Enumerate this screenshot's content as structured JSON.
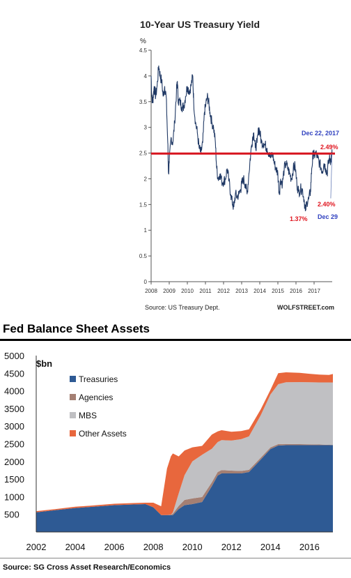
{
  "chart_data": [
    {
      "type": "line",
      "title": "10-Year US Treasury Yield",
      "ylabel": "%",
      "xlabel": "",
      "ylim": [
        0,
        4.5
      ],
      "yticks": [
        "0",
        "0.5",
        "1",
        "1.5",
        "2",
        "2.5",
        "3",
        "3.5",
        "4",
        "4.5"
      ],
      "xticks": [
        "2008",
        "2009",
        "2010",
        "2011",
        "2012",
        "2013",
        "2014",
        "2015",
        "2016",
        "2017"
      ],
      "xlim": [
        2008,
        2018.0
      ],
      "grid": false,
      "series": [
        {
          "values": [
            [
              2008.0,
              4.0
            ],
            [
              2008.04,
              3.6
            ],
            [
              2008.08,
              3.5
            ],
            [
              2008.12,
              3.6
            ],
            [
              2008.17,
              3.8
            ],
            [
              2008.25,
              3.6
            ],
            [
              2008.33,
              3.8
            ],
            [
              2008.42,
              4.2
            ],
            [
              2008.5,
              4.0
            ],
            [
              2008.58,
              3.9
            ],
            [
              2008.67,
              3.6
            ],
            [
              2008.75,
              3.8
            ],
            [
              2008.83,
              3.6
            ],
            [
              2008.92,
              2.7
            ],
            [
              2008.96,
              2.1
            ],
            [
              2009.0,
              2.3
            ],
            [
              2009.1,
              2.8
            ],
            [
              2009.2,
              2.7
            ],
            [
              2009.3,
              3.1
            ],
            [
              2009.4,
              3.7
            ],
            [
              2009.45,
              3.9
            ],
            [
              2009.5,
              3.5
            ],
            [
              2009.6,
              3.5
            ],
            [
              2009.7,
              3.4
            ],
            [
              2009.8,
              3.4
            ],
            [
              2009.9,
              3.6
            ],
            [
              2010.0,
              3.8
            ],
            [
              2010.1,
              3.7
            ],
            [
              2010.2,
              3.8
            ],
            [
              2010.3,
              4.0
            ],
            [
              2010.35,
              3.5
            ],
            [
              2010.45,
              3.1
            ],
            [
              2010.55,
              2.9
            ],
            [
              2010.65,
              2.6
            ],
            [
              2010.75,
              2.5
            ],
            [
              2010.85,
              2.7
            ],
            [
              2010.95,
              3.3
            ],
            [
              2011.0,
              3.4
            ],
            [
              2011.1,
              3.6
            ],
            [
              2011.17,
              3.5
            ],
            [
              2011.25,
              3.3
            ],
            [
              2011.35,
              3.1
            ],
            [
              2011.45,
              3.0
            ],
            [
              2011.55,
              2.7
            ],
            [
              2011.62,
              2.2
            ],
            [
              2011.7,
              2.0
            ],
            [
              2011.8,
              2.1
            ],
            [
              2011.9,
              1.95
            ],
            [
              2012.0,
              1.95
            ],
            [
              2012.1,
              2.0
            ],
            [
              2012.2,
              2.2
            ],
            [
              2012.3,
              1.95
            ],
            [
              2012.4,
              1.7
            ],
            [
              2012.5,
              1.5
            ],
            [
              2012.57,
              1.45
            ],
            [
              2012.65,
              1.7
            ],
            [
              2012.75,
              1.65
            ],
            [
              2012.85,
              1.7
            ],
            [
              2012.95,
              1.8
            ],
            [
              2013.0,
              1.9
            ],
            [
              2013.1,
              2.0
            ],
            [
              2013.2,
              1.9
            ],
            [
              2013.3,
              1.7
            ],
            [
              2013.4,
              2.1
            ],
            [
              2013.5,
              2.5
            ],
            [
              2013.6,
              2.8
            ],
            [
              2013.67,
              2.9
            ],
            [
              2013.75,
              2.6
            ],
            [
              2013.85,
              2.7
            ],
            [
              2013.95,
              3.0
            ],
            [
              2014.0,
              2.9
            ],
            [
              2014.1,
              2.7
            ],
            [
              2014.2,
              2.7
            ],
            [
              2014.3,
              2.65
            ],
            [
              2014.4,
              2.6
            ],
            [
              2014.5,
              2.5
            ],
            [
              2014.6,
              2.4
            ],
            [
              2014.7,
              2.5
            ],
            [
              2014.8,
              2.3
            ],
            [
              2014.9,
              2.2
            ],
            [
              2015.0,
              2.1
            ],
            [
              2015.08,
              1.7
            ],
            [
              2015.15,
              2.0
            ],
            [
              2015.25,
              1.9
            ],
            [
              2015.35,
              2.2
            ],
            [
              2015.45,
              2.3
            ],
            [
              2015.55,
              2.2
            ],
            [
              2015.65,
              2.1
            ],
            [
              2015.75,
              2.0
            ],
            [
              2015.85,
              2.2
            ],
            [
              2015.95,
              2.25
            ],
            [
              2016.05,
              1.9
            ],
            [
              2016.15,
              1.75
            ],
            [
              2016.25,
              1.8
            ],
            [
              2016.35,
              1.8
            ],
            [
              2016.45,
              1.6
            ],
            [
              2016.52,
              1.37
            ],
            [
              2016.6,
              1.55
            ],
            [
              2016.7,
              1.6
            ],
            [
              2016.8,
              1.75
            ],
            [
              2016.87,
              2.2
            ],
            [
              2016.95,
              2.5
            ],
            [
              2017.0,
              2.45
            ],
            [
              2017.1,
              2.5
            ],
            [
              2017.2,
              2.4
            ],
            [
              2017.3,
              2.3
            ],
            [
              2017.4,
              2.2
            ],
            [
              2017.45,
              2.15
            ],
            [
              2017.55,
              2.3
            ],
            [
              2017.65,
              2.2
            ],
            [
              2017.72,
              2.1
            ],
            [
              2017.8,
              2.35
            ],
            [
              2017.88,
              2.4
            ],
            [
              2017.93,
              2.35
            ],
            [
              2017.97,
              2.45
            ],
            [
              2017.99,
              2.49
            ]
          ]
        }
      ],
      "reference_line": 2.49,
      "reference_color": "#d7141e",
      "line_color": "#1f3864",
      "annotations": [
        {
          "text": "Dec 22, 2017",
          "color": "#2e3fbf"
        },
        {
          "text": "2.49%",
          "color": "#e0141e"
        },
        {
          "text": "2.40%",
          "color": "#e0141e"
        },
        {
          "text": "Dec 29",
          "color": "#2e3fbf"
        },
        {
          "text": "1.37%",
          "color": "#e0141e"
        }
      ],
      "source": "Source: US Treasury Dept.",
      "credit": "WOLFSTREET.com"
    },
    {
      "type": "area",
      "title": "Fed Balance Sheet Assets",
      "ylabel": "$bn",
      "xlabel": "",
      "ylim": [
        0,
        5000
      ],
      "yticks": [
        "500",
        "1000",
        "1500",
        "2000",
        "2500",
        "3000",
        "3500",
        "4000",
        "4500",
        "5000"
      ],
      "xticks": [
        "2002",
        "2004",
        "2006",
        "2008",
        "2010",
        "2012",
        "2014",
        "2016"
      ],
      "xlim": [
        2002,
        2017.2
      ],
      "grid": false,
      "legend_position": "upper-left",
      "x": [
        2002.0,
        2003.0,
        2004.0,
        2005.0,
        2006.0,
        2007.0,
        2007.6,
        2008.0,
        2008.4,
        2008.7,
        2008.9,
        2009.0,
        2009.3,
        2009.6,
        2010.0,
        2010.5,
        2011.0,
        2011.3,
        2011.5,
        2012.0,
        2012.5,
        2012.9,
        2013.5,
        2014.0,
        2014.4,
        2014.8,
        2015.5,
        2016.0,
        2016.5,
        2017.0,
        2017.2
      ],
      "series": [
        {
          "name": "Treasuries",
          "color": "#2e5a94",
          "values": [
            560,
            620,
            680,
            720,
            760,
            780,
            790,
            700,
            480,
            480,
            480,
            480,
            650,
            760,
            790,
            850,
            1300,
            1600,
            1660,
            1660,
            1660,
            1700,
            2050,
            2350,
            2450,
            2460,
            2460,
            2460,
            2460,
            2460,
            2460
          ]
        },
        {
          "name": "Agencies",
          "color": "#a47f73",
          "values": [
            0,
            0,
            0,
            0,
            0,
            0,
            0,
            0,
            0,
            0,
            15,
            40,
            90,
            150,
            160,
            140,
            110,
            100,
            95,
            80,
            70,
            60,
            55,
            45,
            40,
            35,
            30,
            25,
            20,
            10,
            8
          ]
        },
        {
          "name": "MBS",
          "color": "#c0c0c3",
          "values": [
            0,
            0,
            0,
            0,
            0,
            0,
            0,
            0,
            0,
            0,
            0,
            30,
            350,
            700,
            1050,
            1200,
            950,
            850,
            850,
            850,
            900,
            950,
            1200,
            1500,
            1700,
            1750,
            1760,
            1760,
            1760,
            1770,
            1770
          ]
        },
        {
          "name": "Other Assets",
          "color": "#e8673d",
          "values": [
            30,
            30,
            35,
            35,
            40,
            40,
            40,
            130,
            250,
            1300,
            1600,
            1700,
            1100,
            700,
            400,
            250,
            400,
            300,
            280,
            250,
            230,
            200,
            170,
            130,
            310,
            280,
            260,
            240,
            220,
            210,
            240
          ]
        }
      ],
      "source": "Source: SG Cross Asset Research/Economics"
    }
  ]
}
